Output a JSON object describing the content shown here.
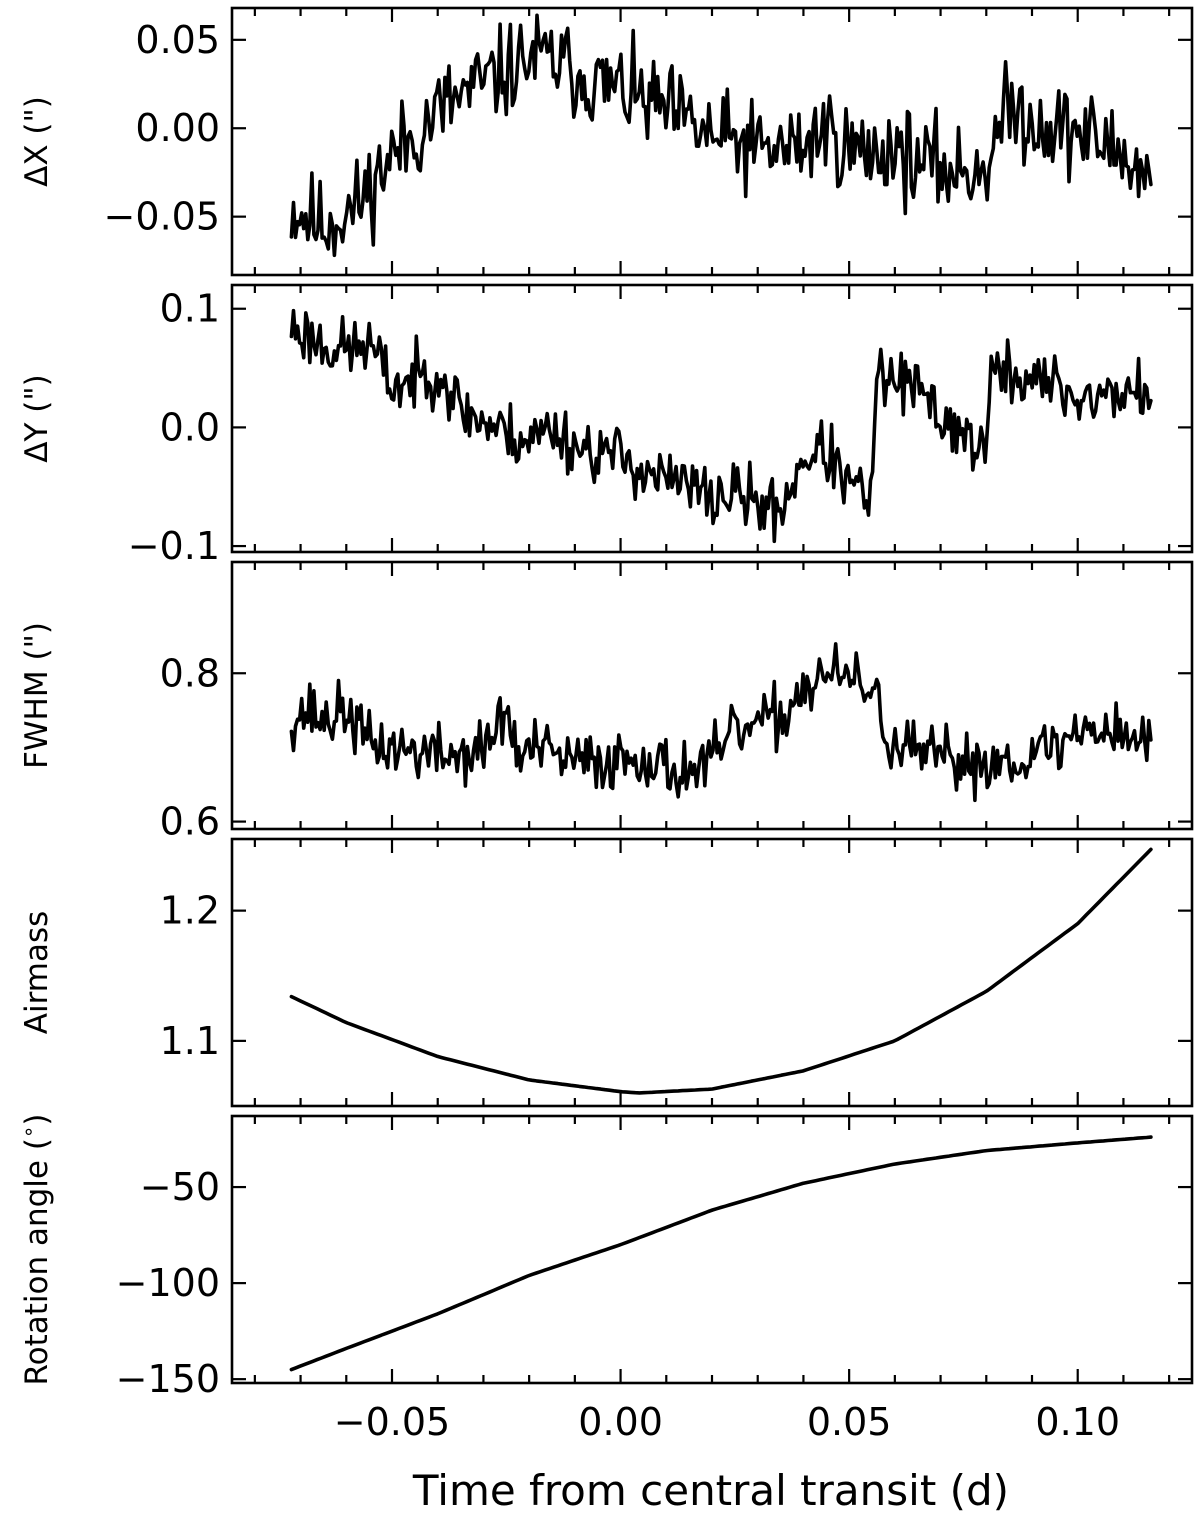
{
  "figure": {
    "xlabel": "Time from central transit (d)",
    "xlim": [
      -0.085,
      0.125
    ],
    "xticks": [
      -0.05,
      0.0,
      0.05,
      0.1
    ],
    "xtick_labels": [
      "−0.05",
      "0.00",
      "0.05",
      "0.10"
    ],
    "x_start": -0.072,
    "x_end": 0.116
  },
  "chart_data": [
    {
      "type": "line",
      "ylabel": "ΔX (\")",
      "ylim": [
        -0.083,
        0.068
      ],
      "yticks": [
        -0.05,
        0.0,
        0.05
      ],
      "ytick_labels": [
        "−0.05",
        "0.00",
        "0.05"
      ],
      "grid": false,
      "series": [
        {
          "x": [
            -0.072,
            -0.065,
            -0.058,
            -0.05,
            -0.045,
            -0.04,
            -0.035,
            -0.03,
            -0.025,
            -0.02,
            -0.015,
            -0.01,
            -0.005,
            0.0,
            0.005,
            0.01,
            0.015,
            0.02,
            0.025,
            0.03,
            0.035,
            0.04,
            0.045,
            0.05,
            0.055,
            0.06,
            0.065,
            0.07,
            0.075,
            0.08,
            0.085,
            0.09,
            0.095,
            0.1,
            0.105,
            0.11,
            0.116
          ],
          "y": [
            -0.045,
            -0.055,
            -0.045,
            -0.015,
            -0.005,
            0.01,
            0.018,
            0.025,
            0.032,
            0.04,
            0.038,
            0.032,
            0.025,
            0.022,
            0.015,
            0.01,
            0.002,
            -0.005,
            -0.008,
            -0.012,
            -0.012,
            -0.01,
            0.0,
            -0.012,
            -0.015,
            -0.01,
            -0.02,
            -0.022,
            -0.025,
            -0.02,
            0.012,
            0.005,
            0.0,
            -0.002,
            -0.008,
            -0.015,
            -0.03
          ],
          "noise": 0.013,
          "seed": 11
        }
      ]
    },
    {
      "type": "line",
      "ylabel": "ΔY (\")",
      "ylim": [
        -0.105,
        0.12
      ],
      "yticks": [
        -0.1,
        0.0,
        0.1
      ],
      "ytick_labels": [
        "−0.1",
        "0.0",
        "0.1"
      ],
      "grid": false,
      "series": [
        {
          "x": [
            -0.072,
            -0.065,
            -0.06,
            -0.055,
            -0.05,
            -0.045,
            -0.04,
            -0.035,
            -0.03,
            -0.025,
            -0.02,
            -0.015,
            -0.01,
            -0.005,
            0.0,
            0.005,
            0.01,
            0.015,
            0.02,
            0.025,
            0.03,
            0.035,
            0.04,
            0.045,
            0.05,
            0.055,
            0.056,
            0.06,
            0.065,
            0.07,
            0.075,
            0.08,
            0.081,
            0.085,
            0.09,
            0.095,
            0.1,
            0.105,
            0.11,
            0.116
          ],
          "y": [
            0.085,
            0.07,
            0.065,
            0.07,
            0.035,
            0.04,
            0.05,
            0.015,
            0.005,
            -0.005,
            -0.01,
            0.0,
            -0.015,
            -0.02,
            -0.025,
            -0.035,
            -0.045,
            -0.05,
            -0.06,
            -0.055,
            -0.065,
            -0.07,
            -0.025,
            -0.02,
            -0.05,
            -0.06,
            0.04,
            0.04,
            0.03,
            0.01,
            -0.005,
            -0.02,
            0.045,
            0.045,
            0.04,
            0.035,
            0.025,
            0.025,
            0.03,
            0.03
          ],
          "noise": 0.013,
          "seed": 23
        }
      ]
    },
    {
      "type": "line",
      "ylabel": "FWHM (\")",
      "ylim": [
        0.59,
        0.95
      ],
      "yticks": [
        0.6,
        0.8
      ],
      "ytick_labels": [
        "0.6",
        "0.8"
      ],
      "grid": false,
      "series": [
        {
          "x": [
            -0.072,
            -0.068,
            -0.065,
            -0.06,
            -0.055,
            -0.05,
            -0.045,
            -0.04,
            -0.035,
            -0.03,
            -0.025,
            -0.022,
            -0.02,
            -0.015,
            -0.01,
            -0.005,
            0.0,
            0.005,
            0.01,
            0.015,
            0.02,
            0.025,
            0.03,
            0.035,
            0.04,
            0.045,
            0.05,
            0.055,
            0.058,
            0.06,
            0.065,
            0.07,
            0.075,
            0.08,
            0.085,
            0.09,
            0.095,
            0.1,
            0.105,
            0.11,
            0.116
          ],
          "y": [
            0.74,
            0.75,
            0.735,
            0.75,
            0.705,
            0.7,
            0.695,
            0.69,
            0.69,
            0.695,
            0.75,
            0.68,
            0.7,
            0.69,
            0.68,
            0.68,
            0.685,
            0.69,
            0.67,
            0.67,
            0.68,
            0.72,
            0.73,
            0.74,
            0.78,
            0.8,
            0.79,
            0.78,
            0.72,
            0.7,
            0.69,
            0.685,
            0.68,
            0.68,
            0.685,
            0.69,
            0.7,
            0.72,
            0.73,
            0.72,
            0.705
          ],
          "noise": 0.02,
          "seed": 37
        }
      ]
    },
    {
      "type": "line",
      "ylabel": "Airmass",
      "ylim": [
        1.05,
        1.255
      ],
      "yticks": [
        1.1,
        1.2
      ],
      "ytick_labels": [
        "1.1",
        "1.2"
      ],
      "grid": false,
      "series": [
        {
          "x": [
            -0.072,
            -0.06,
            -0.04,
            -0.02,
            0.0,
            0.004,
            0.02,
            0.04,
            0.06,
            0.08,
            0.1,
            0.116
          ],
          "y": [
            1.134,
            1.114,
            1.088,
            1.07,
            1.061,
            1.06,
            1.063,
            1.077,
            1.1,
            1.138,
            1.19,
            1.247
          ],
          "noise": 0,
          "seed": 0
        }
      ]
    },
    {
      "type": "line",
      "ylabel": "Rotation angle ($^\\circ$)",
      "ylim": [
        -152,
        -13
      ],
      "yticks": [
        -150,
        -100,
        -50
      ],
      "ytick_labels": [
        "−150",
        "−100",
        "−50"
      ],
      "grid": false,
      "series": [
        {
          "x": [
            -0.072,
            -0.06,
            -0.04,
            -0.02,
            0.0,
            0.02,
            0.04,
            0.06,
            0.08,
            0.1,
            0.116
          ],
          "y": [
            -145,
            -134,
            -116,
            -96,
            -80,
            -62,
            -48,
            -38,
            -31,
            -27,
            -24
          ],
          "noise": 0,
          "seed": 0
        }
      ]
    }
  ]
}
